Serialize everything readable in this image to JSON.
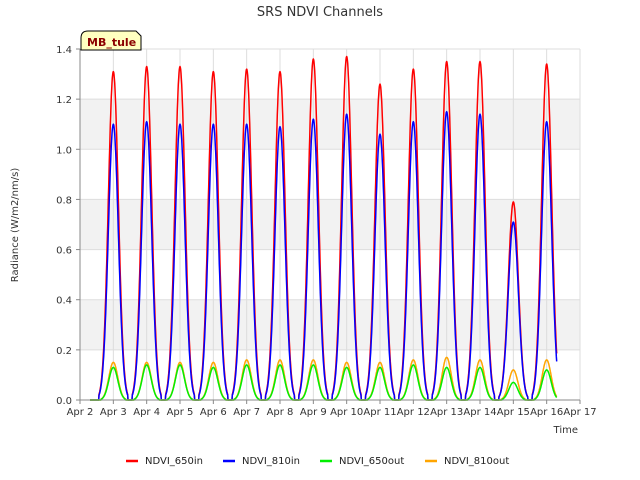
{
  "chart_data": {
    "type": "line",
    "title": "SRS NDVI Channels",
    "xlabel": "Time",
    "ylabel": "Radiance (W/m2/nm/s)",
    "badge": "MB_tule",
    "ylim": [
      0,
      1.4
    ],
    "xlim": [
      0,
      15
    ],
    "y_ticks": [
      "0.0",
      "0.2",
      "0.4",
      "0.6",
      "0.8",
      "1.0",
      "1.2",
      "1.4"
    ],
    "x_ticks": [
      "Apr 2",
      "Apr 3",
      "Apr 4",
      "Apr 5",
      "Apr 6",
      "Apr 7",
      "Apr 8",
      "Apr 9",
      "Apr 10",
      "Apr 11",
      "Apr 12",
      "Apr 13",
      "Apr 14",
      "Apr 15",
      "Apr 16",
      "Apr 17"
    ],
    "x_unit": "days since Apr 2",
    "grid": true,
    "legend_position": "bottom",
    "series": [
      {
        "name": "NDVI_650in",
        "color": "#ff0000",
        "peaks": [
          1.31,
          1.33,
          1.33,
          1.31,
          1.32,
          1.31,
          1.36,
          1.37,
          1.26,
          1.32,
          1.35,
          1.35,
          0.79,
          1.34
        ]
      },
      {
        "name": "NDVI_810in",
        "color": "#0000ff",
        "peaks": [
          1.1,
          1.11,
          1.1,
          1.1,
          1.1,
          1.09,
          1.12,
          1.14,
          1.06,
          1.11,
          1.15,
          1.14,
          0.71,
          1.11
        ]
      },
      {
        "name": "NDVI_650out",
        "color": "#00ee00",
        "peaks": [
          0.13,
          0.14,
          0.14,
          0.13,
          0.14,
          0.14,
          0.14,
          0.13,
          0.13,
          0.14,
          0.13,
          0.13,
          0.07,
          0.12
        ]
      },
      {
        "name": "NDVI_810out",
        "color": "#ffa500",
        "peaks": [
          0.15,
          0.15,
          0.15,
          0.15,
          0.16,
          0.16,
          0.16,
          0.15,
          0.15,
          0.16,
          0.17,
          0.16,
          0.12,
          0.16
        ]
      }
    ],
    "day_centers": [
      1.0,
      2.0,
      3.0,
      4.0,
      5.0,
      6.0,
      7.0,
      8.0,
      9.0,
      10.0,
      11.0,
      12.0,
      13.0,
      14.0
    ]
  }
}
